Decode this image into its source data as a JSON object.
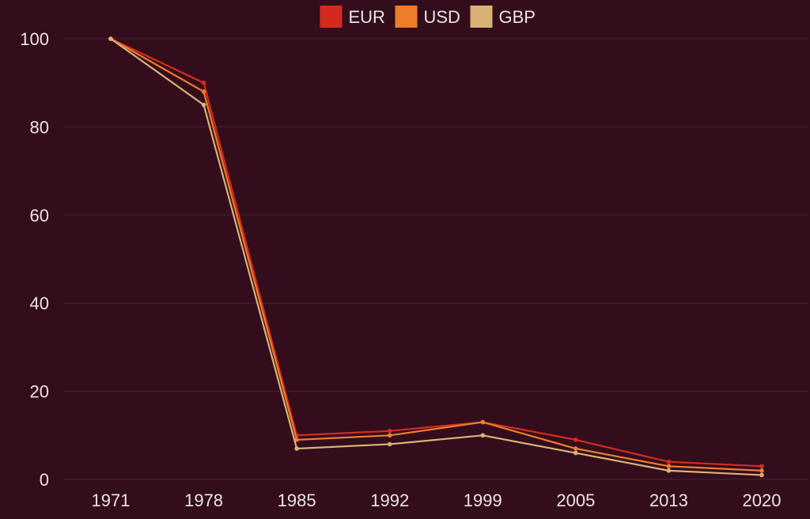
{
  "chart_data": {
    "type": "line",
    "x": [
      "1971",
      "1978",
      "1985",
      "1992",
      "1999",
      "2005",
      "2013",
      "2020"
    ],
    "series": [
      {
        "name": "EUR",
        "color": "#d42a1e",
        "values": [
          100,
          90,
          10,
          11,
          13,
          9,
          4,
          3
        ]
      },
      {
        "name": "USD",
        "color": "#ec7d2a",
        "values": [
          100,
          88,
          9,
          10,
          13,
          7,
          3,
          2
        ]
      },
      {
        "name": "GBP",
        "color": "#d7b277",
        "values": [
          100,
          85,
          7,
          8,
          10,
          6,
          2,
          1
        ]
      }
    ],
    "ylim": [
      0,
      100
    ],
    "yticks": [
      0,
      20,
      40,
      60,
      80,
      100
    ],
    "grid": true,
    "legend_position": "top-center",
    "title": "",
    "xlabel": "",
    "ylabel": ""
  }
}
